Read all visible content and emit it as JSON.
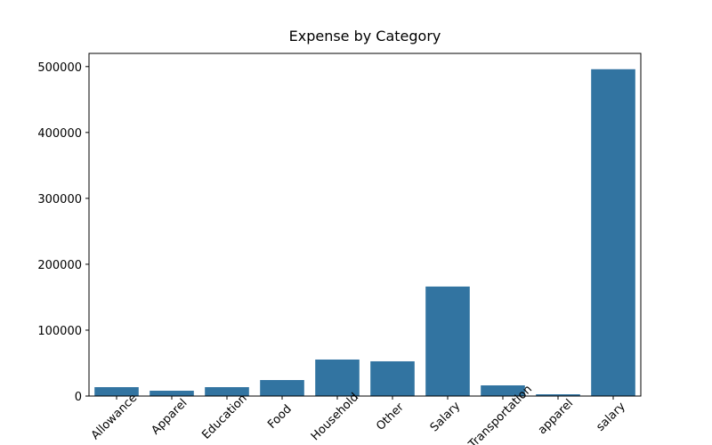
{
  "chart_data": {
    "type": "bar",
    "title": "Expense by Category",
    "categories": [
      "Allowance",
      "Apparel",
      "Education",
      "Food",
      "Household",
      "Other",
      "Salary",
      "Transportation",
      "apparel",
      "salary"
    ],
    "values": [
      13500,
      8100,
      13500,
      24300,
      55400,
      52700,
      166200,
      16200,
      2700,
      496000
    ],
    "color": "#3274a1",
    "ylim": [
      0,
      520000
    ],
    "yticks": [
      0,
      100000,
      200000,
      300000,
      400000,
      500000
    ],
    "grid": false
  }
}
